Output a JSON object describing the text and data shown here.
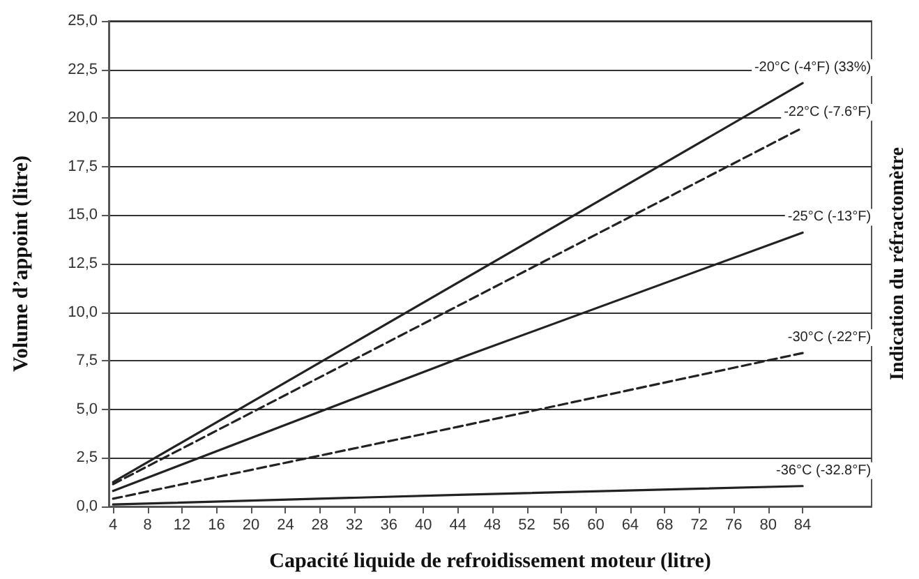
{
  "chart_data": {
    "type": "line",
    "xlabel": "Capacité liquide de refroidissement moteur (litre)",
    "ylabel": "Volume d’appoint (litre)",
    "y2label": "Indication du réfractomètre",
    "xlim": [
      3.5,
      92
    ],
    "xticks": [
      4,
      8,
      12,
      16,
      20,
      24,
      28,
      32,
      36,
      40,
      44,
      48,
      52,
      56,
      60,
      64,
      68,
      72,
      76,
      80,
      84
    ],
    "ylim": [
      0,
      25
    ],
    "yticks": [
      {
        "value": 0,
        "label": "0,0"
      },
      {
        "value": 2.5,
        "label": "2,5"
      },
      {
        "value": 5,
        "label": "5,0"
      },
      {
        "value": 7.5,
        "label": "7,5"
      },
      {
        "value": 10,
        "label": "10,0"
      },
      {
        "value": 12.5,
        "label": "12,5"
      },
      {
        "value": 15,
        "label": "15,0"
      },
      {
        "value": 17.5,
        "label": "17,5"
      },
      {
        "value": 20,
        "label": "20,0"
      },
      {
        "value": 22.5,
        "label": "22,5"
      },
      {
        "value": 25,
        "label": "25,0"
      }
    ],
    "grid": "y",
    "legend": false,
    "marker": "none",
    "series": [
      {
        "name": "-20°C (-4°F) (33%)",
        "color": "#222222",
        "line_style": "solid",
        "x": [
          4,
          84
        ],
        "values": [
          1.25,
          21.8
        ]
      },
      {
        "name": "-22°C (-7.6°F)",
        "color": "#222222",
        "line_style": "dashed",
        "x": [
          4,
          84
        ],
        "values": [
          1.15,
          19.5
        ]
      },
      {
        "name": "-25°C (-13°F)",
        "color": "#222222",
        "line_style": "solid",
        "x": [
          4,
          44,
          84
        ],
        "values": [
          0.8,
          7.6,
          14.1
        ]
      },
      {
        "name": "-30°C (-22°F)",
        "color": "#222222",
        "line_style": "dashed",
        "x": [
          4,
          44,
          84
        ],
        "values": [
          0.4,
          4.1,
          7.9
        ]
      },
      {
        "name": "-36°C (-32.8°F)",
        "color": "#222222",
        "line_style": "solid",
        "x": [
          4,
          44,
          84
        ],
        "values": [
          0.1,
          0.6,
          1.05
        ]
      }
    ]
  }
}
